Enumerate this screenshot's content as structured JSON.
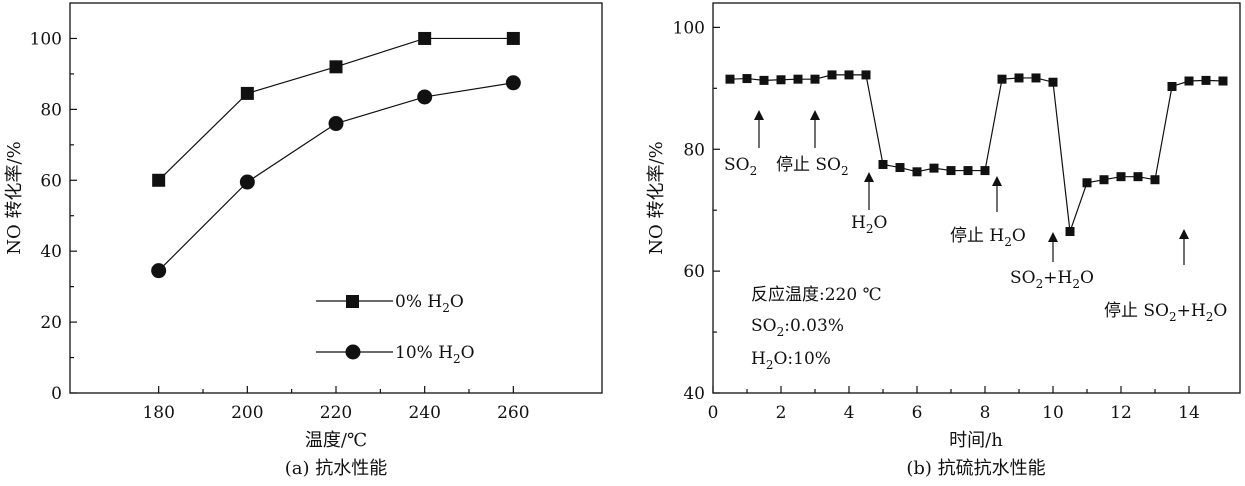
{
  "chart_data": [
    {
      "type": "line",
      "caption": "(a) 抗水性能",
      "xlabel": "温度/℃",
      "ylabel": "NO 转化率/%",
      "xlim": [
        160,
        280
      ],
      "ylim": [
        0,
        110
      ],
      "x_ticks": [
        180,
        200,
        220,
        240,
        260
      ],
      "y_ticks": [
        0,
        20,
        40,
        60,
        80,
        100
      ],
      "legend": {
        "placement": "bottom-right",
        "entries": [
          {
            "label_main": "0% H",
            "label_sub": "2",
            "label_tail": "O",
            "marker": "square"
          },
          {
            "label_main": "10% H",
            "label_sub": "2",
            "label_tail": "O",
            "marker": "circle"
          }
        ]
      },
      "series": [
        {
          "marker": "square",
          "x": [
            180,
            200,
            220,
            240,
            260
          ],
          "y": [
            60,
            84.5,
            92,
            100,
            100
          ]
        },
        {
          "marker": "circle",
          "x": [
            180,
            200,
            220,
            240,
            260
          ],
          "y": [
            34.5,
            59.5,
            76,
            83.5,
            87.5
          ]
        }
      ]
    },
    {
      "type": "line",
      "caption": "(b) 抗硫抗水性能",
      "xlabel": "时间/h",
      "ylabel": "NO 转化率/%",
      "xlim": [
        0,
        15.5
      ],
      "ylim": [
        40,
        104
      ],
      "x_ticks": [
        0,
        2,
        4,
        6,
        8,
        10,
        12,
        14
      ],
      "y_ticks": [
        40,
        60,
        80,
        100
      ],
      "series": [
        {
          "marker": "square",
          "x": [
            0.5,
            1.0,
            1.5,
            2.0,
            2.5,
            3.0,
            3.5,
            4.0,
            4.5,
            5.0,
            5.5,
            6.0,
            6.5,
            7.0,
            7.5,
            8.0,
            8.5,
            9.0,
            9.5,
            10.0,
            10.5,
            11.0,
            11.5,
            12.0,
            12.5,
            13.0,
            13.5,
            14.0,
            14.5,
            15.0
          ],
          "y": [
            91.5,
            91.6,
            91.3,
            91.4,
            91.5,
            91.5,
            92.2,
            92.2,
            92.2,
            77.5,
            77.0,
            76.3,
            76.9,
            76.5,
            76.5,
            76.5,
            91.5,
            91.7,
            91.7,
            91.0,
            66.5,
            74.5,
            75.0,
            75.5,
            75.5,
            75.0,
            90.3,
            91.2,
            91.3,
            91.2
          ]
        }
      ],
      "annotations": {
        "so2": {
          "main": "SO",
          "sub": "2",
          "tail": ""
        },
        "stop_so2": {
          "main": "停止 SO",
          "sub": "2",
          "tail": ""
        },
        "h2o": {
          "main": "H",
          "sub": "2",
          "tail": "O"
        },
        "stop_h2o": {
          "main": "停止 H",
          "sub": "2",
          "tail": "O"
        },
        "so2_h2o": {
          "main": "SO",
          "sub": "2",
          "tail": "+H",
          "sub2": "2",
          "tail2": "O"
        },
        "stop_so2_h2o": {
          "main": "停止 SO",
          "sub": "2",
          "tail": "+H",
          "sub2": "2",
          "tail2": "O"
        }
      },
      "conditions": {
        "temp": "反应温度:220 ℃",
        "so2_main": "SO",
        "so2_sub": "2",
        "so2_tail": ":0.03%",
        "h2o_main": "H",
        "h2o_sub": "2",
        "h2o_tail": "O:10%"
      }
    }
  ]
}
